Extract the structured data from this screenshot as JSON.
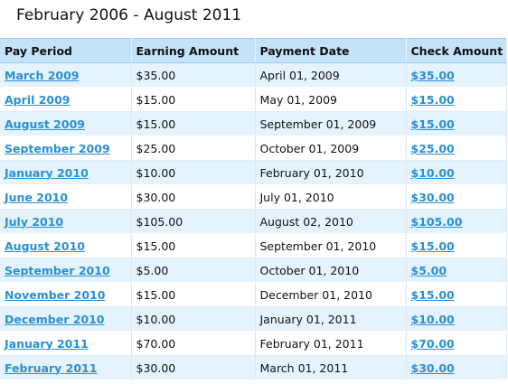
{
  "page": {
    "title": "February 2006 - August 2011"
  },
  "table": {
    "headers": [
      "Pay Period",
      "Earning Amount",
      "Payment Date",
      "Check Amount"
    ],
    "rows": [
      {
        "period": "March 2009",
        "earning": "$35.00",
        "date": "April 01, 2009",
        "check": "$35.00"
      },
      {
        "period": "April 2009",
        "earning": "$15.00",
        "date": "May 01, 2009",
        "check": "$15.00"
      },
      {
        "period": "August 2009",
        "earning": "$15.00",
        "date": "September 01, 2009",
        "check": "$15.00"
      },
      {
        "period": "September 2009",
        "earning": "$25.00",
        "date": "October 01, 2009",
        "check": "$25.00"
      },
      {
        "period": "January 2010",
        "earning": "$10.00",
        "date": "February 01, 2010",
        "check": "$10.00"
      },
      {
        "period": "June 2010",
        "earning": "$30.00",
        "date": "July 01, 2010",
        "check": "$30.00"
      },
      {
        "period": "July 2010",
        "earning": "$105.00",
        "date": "August 02, 2010",
        "check": "$105.00"
      },
      {
        "period": "August 2010",
        "earning": "$15.00",
        "date": "September 01, 2010",
        "check": "$15.00"
      },
      {
        "period": "September 2010",
        "earning": "$5.00",
        "date": "October 01, 2010",
        "check": "$5.00"
      },
      {
        "period": "November 2010",
        "earning": "$15.00",
        "date": "December 01, 2010",
        "check": "$15.00"
      },
      {
        "period": "December 2010",
        "earning": "$10.00",
        "date": "January 01, 2011",
        "check": "$10.00"
      },
      {
        "period": "January 2011",
        "earning": "$70.00",
        "date": "February 01, 2011",
        "check": "$70.00"
      },
      {
        "period": "February 2011",
        "earning": "$30.00",
        "date": "March 01, 2011",
        "check": "$30.00"
      }
    ]
  },
  "colors": {
    "link": "#2a8fd4",
    "header_bg": "#c5e3f8",
    "row_alt_bg": "#e4f3fd"
  }
}
